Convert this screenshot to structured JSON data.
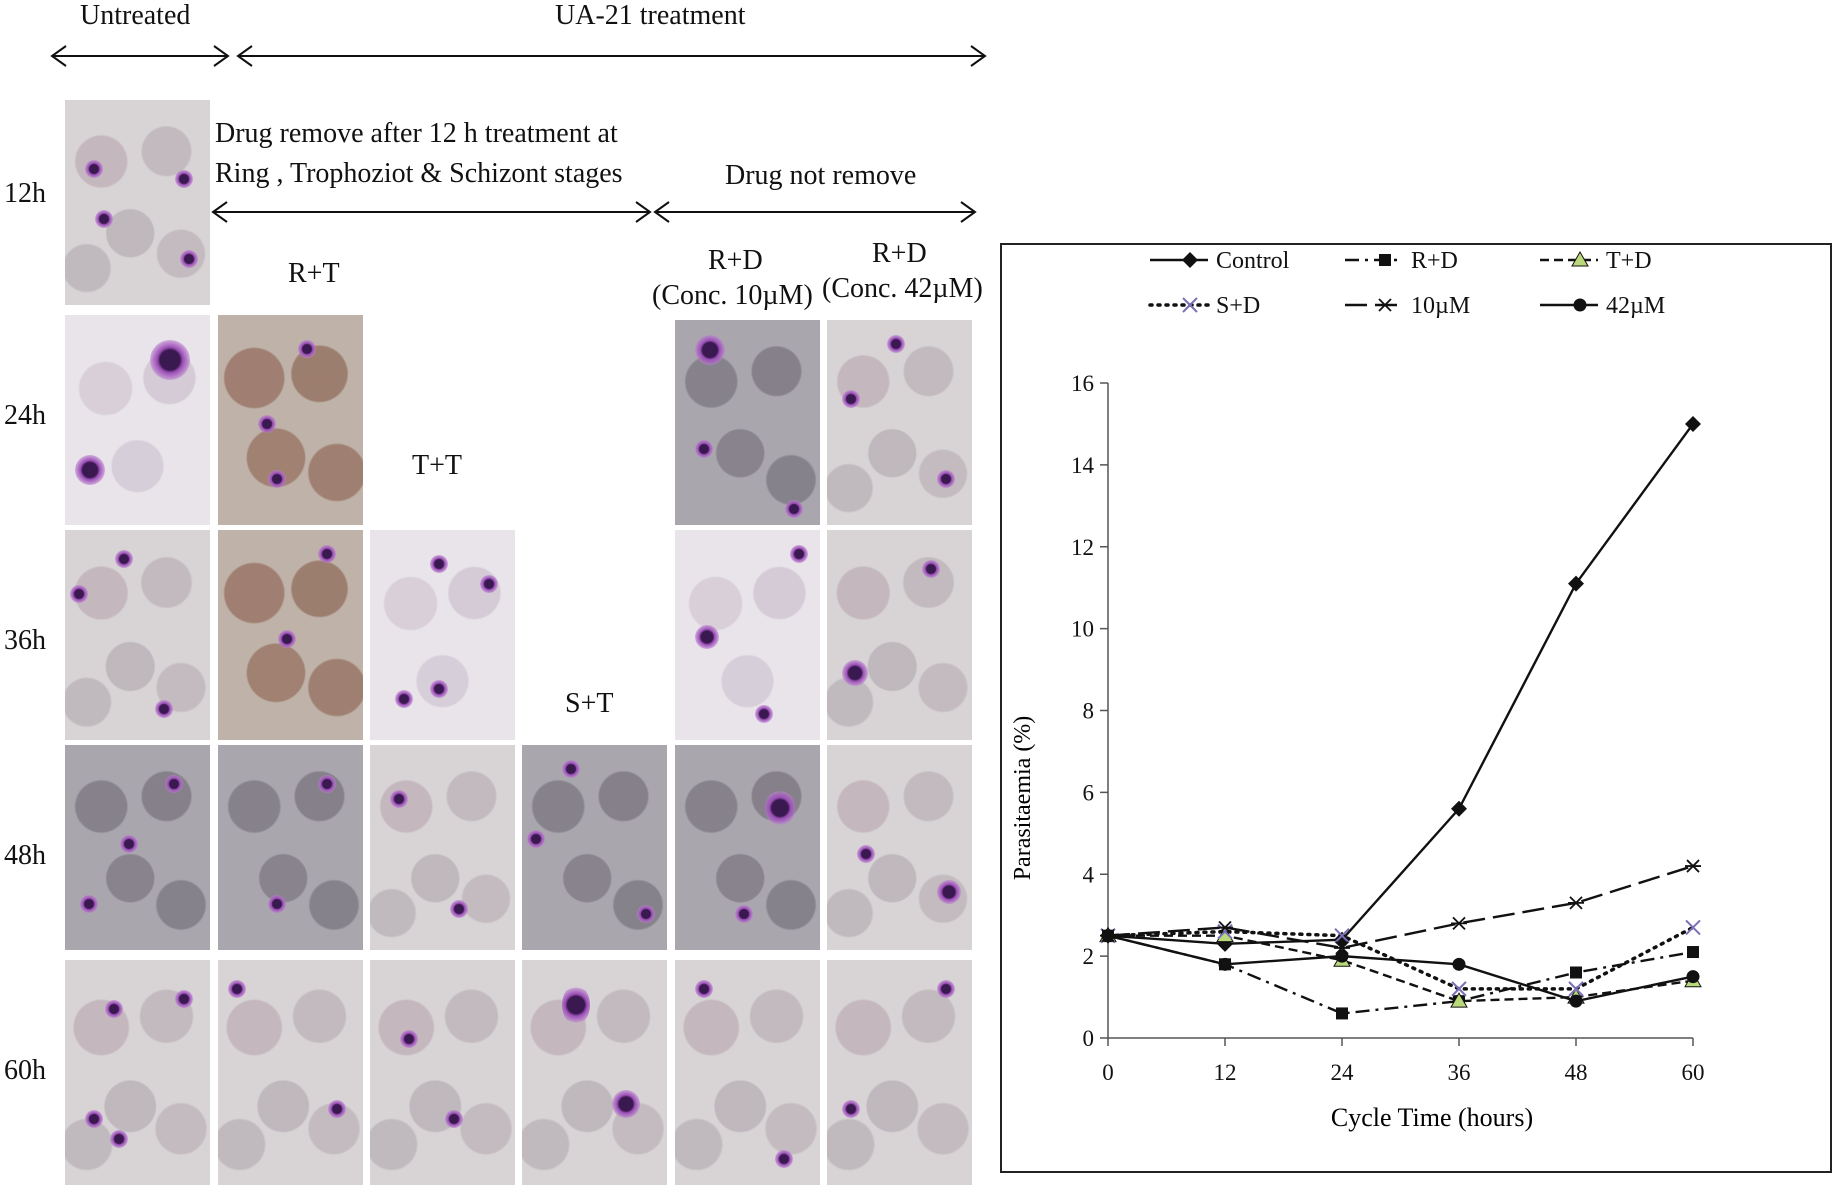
{
  "header": {
    "untreated": "Untreated",
    "treatment": "UA-21 treatment",
    "drug_removed_line1": "Drug remove after 12 h treatment at",
    "drug_removed_line2": "Ring , Trophoziot  & Schizont stages",
    "drug_not_removed": "Drug not remove"
  },
  "columns": {
    "rt": "R+T",
    "tt": "T+T",
    "st": "S+T",
    "rd10_a": "R+D",
    "rd10_b": "(Conc. 10µM)",
    "rd42_a": "R+D",
    "rd42_b": "(Conc. 42µM)"
  },
  "rows": [
    "12h",
    "24h",
    "36h",
    "48h",
    "60h"
  ],
  "colors": {
    "frame": "#222222",
    "line": "#111111",
    "parasite": "#9b4fb6"
  },
  "chart_data": {
    "type": "line",
    "title": "",
    "xlabel": "Cycle Time  (hours)",
    "ylabel": "Parasitaemia (%)",
    "x": [
      0,
      12,
      24,
      36,
      48,
      60
    ],
    "xlim": [
      0,
      60
    ],
    "ylim": [
      0,
      16
    ],
    "xticks": [
      "0",
      "12",
      "24",
      "36",
      "48",
      "60"
    ],
    "yticks": [
      "0",
      "2",
      "4",
      "6",
      "8",
      "10",
      "12",
      "14",
      "16"
    ],
    "grid": false,
    "legend_position": "top",
    "series": [
      {
        "name": "Control",
        "dash": "solid",
        "marker": "diamond",
        "values": [
          2.5,
          2.3,
          2.4,
          5.6,
          11.1,
          15.0
        ]
      },
      {
        "name": "R+D",
        "dash": "dash-dot",
        "marker": "square",
        "values": [
          2.5,
          1.8,
          0.6,
          0.9,
          1.6,
          2.1
        ]
      },
      {
        "name": "T+D",
        "dash": "dashed-dot",
        "marker": "triangle",
        "values": [
          2.5,
          2.5,
          1.9,
          0.9,
          1.0,
          1.4
        ]
      },
      {
        "name": "S+D",
        "dash": "dotted",
        "marker": "x",
        "values": [
          2.5,
          2.6,
          2.5,
          1.2,
          1.2,
          2.7
        ]
      },
      {
        "name": "10µM",
        "dash": "long-dash",
        "marker": "star",
        "values": [
          2.5,
          2.7,
          2.2,
          2.8,
          3.3,
          4.2
        ]
      },
      {
        "name": "42µM",
        "dash": "solid",
        "marker": "circle",
        "values": [
          2.5,
          1.8,
          2.0,
          1.8,
          0.9,
          1.5
        ]
      }
    ]
  }
}
